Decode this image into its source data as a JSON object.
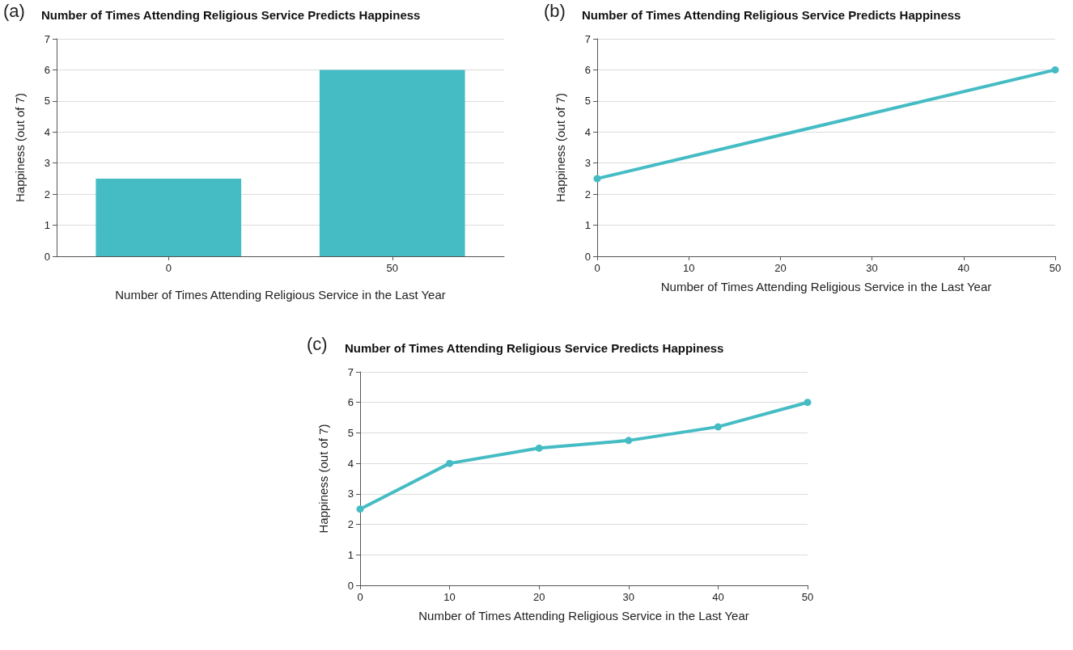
{
  "chart_data": [
    {
      "type": "bar",
      "title": "Number of Times Attending Religious Service Predicts Happiness",
      "annotations": [
        "(a)"
      ],
      "xlabel": "Number of Times Attending Religious Service in the Last Year",
      "ylabel": "Happiness (out of 7)",
      "categories": [
        "0",
        "50"
      ],
      "values": [
        2.5,
        6
      ],
      "color": "#45bcc4",
      "ylim": [
        0,
        7
      ],
      "yticks": [
        0,
        1,
        2,
        3,
        4,
        5,
        6,
        7
      ],
      "grid": "y"
    },
    {
      "type": "line",
      "title": "Number of Times Attending Religious Service Predicts Happiness",
      "annotations": [
        "(b)"
      ],
      "xlabel": "Number of Times Attending Religious Service in the Last Year",
      "ylabel": "Happiness (out of 7)",
      "x": [
        0,
        50
      ],
      "values": [
        2.5,
        6
      ],
      "color": "#45bcc4",
      "xlim": [
        0,
        50
      ],
      "xticks": [
        0,
        10,
        20,
        30,
        40,
        50
      ],
      "ylim": [
        0,
        7
      ],
      "yticks": [
        0,
        1,
        2,
        3,
        4,
        5,
        6,
        7
      ],
      "grid": "y",
      "marker": "circle",
      "line_style": "solid"
    },
    {
      "type": "line",
      "title": "Number of Times Attending Religious Service Predicts Happiness",
      "annotations": [
        "(c)"
      ],
      "xlabel": "Number of Times Attending Religious Service in the Last Year",
      "ylabel": "Happiness (out of 7)",
      "x": [
        0,
        10,
        20,
        30,
        40,
        50
      ],
      "values": [
        2.5,
        4,
        4.5,
        4.75,
        5.2,
        6
      ],
      "color": "#45bcc4",
      "xlim": [
        0,
        50
      ],
      "xticks": [
        0,
        10,
        20,
        30,
        40,
        50
      ],
      "ylim": [
        0,
        7
      ],
      "yticks": [
        0,
        1,
        2,
        3,
        4,
        5,
        6,
        7
      ],
      "grid": "y",
      "marker": "circle",
      "line_style": "solid"
    }
  ]
}
